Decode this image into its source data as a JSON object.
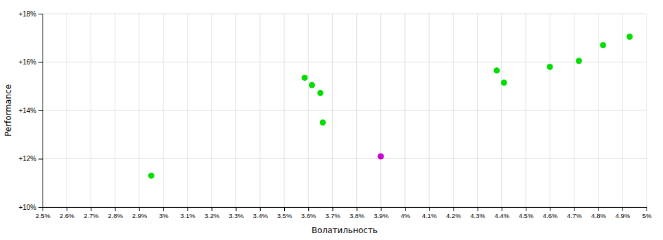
{
  "chart_data": {
    "type": "scatter",
    "xlabel": "Волатильность",
    "ylabel": "Performance",
    "x": [
      2.95,
      3.585,
      3.615,
      3.65,
      3.66,
      3.9,
      4.38,
      4.41,
      4.6,
      4.72,
      4.82,
      4.93
    ],
    "values": [
      11.3,
      15.35,
      15.05,
      14.72,
      13.5,
      12.1,
      15.65,
      15.15,
      15.8,
      16.05,
      16.7,
      17.05
    ],
    "colors": [
      "#00dd00",
      "#00dd00",
      "#00dd00",
      "#00dd00",
      "#00dd00",
      "#cc00cc",
      "#00dd00",
      "#00dd00",
      "#00dd00",
      "#00dd00",
      "#00dd00",
      "#00dd00"
    ],
    "xlim": [
      2.5,
      5.0
    ],
    "xticks": [
      {
        "value": 2.5,
        "label": "2.5%"
      },
      {
        "value": 2.6,
        "label": "2.6%"
      },
      {
        "value": 2.7,
        "label": "2.7%"
      },
      {
        "value": 2.8,
        "label": "2.8%"
      },
      {
        "value": 2.9,
        "label": "2.9%"
      },
      {
        "value": 3.0,
        "label": "3%"
      },
      {
        "value": 3.1,
        "label": "3.1%"
      },
      {
        "value": 3.2,
        "label": "3.2%"
      },
      {
        "value": 3.3,
        "label": "3.3%"
      },
      {
        "value": 3.4,
        "label": "3.4%"
      },
      {
        "value": 3.5,
        "label": "3.5%"
      },
      {
        "value": 3.6,
        "label": "3.6%"
      },
      {
        "value": 3.7,
        "label": "3.7%"
      },
      {
        "value": 3.8,
        "label": "3.8%"
      },
      {
        "value": 3.9,
        "label": "3.9%"
      },
      {
        "value": 4.0,
        "label": "4%"
      },
      {
        "value": 4.1,
        "label": "4.1%"
      },
      {
        "value": 4.2,
        "label": "4.2%"
      },
      {
        "value": 4.3,
        "label": "4.3%"
      },
      {
        "value": 4.4,
        "label": "4.4%"
      },
      {
        "value": 4.5,
        "label": "4.5%"
      },
      {
        "value": 4.6,
        "label": "4.6%"
      },
      {
        "value": 4.7,
        "label": "4.7%"
      },
      {
        "value": 4.8,
        "label": "4.8%"
      },
      {
        "value": 4.9,
        "label": "4.9%"
      },
      {
        "value": 5.0,
        "label": "5%"
      }
    ],
    "ylim": [
      10.0,
      18.0
    ],
    "yticks": [
      {
        "value": 10,
        "label": "+10%"
      },
      {
        "value": 12,
        "label": "+12%"
      },
      {
        "value": 14,
        "label": "+14%"
      },
      {
        "value": 16,
        "label": "+16%"
      },
      {
        "value": 18,
        "label": "+18%"
      }
    ],
    "grid": true
  }
}
